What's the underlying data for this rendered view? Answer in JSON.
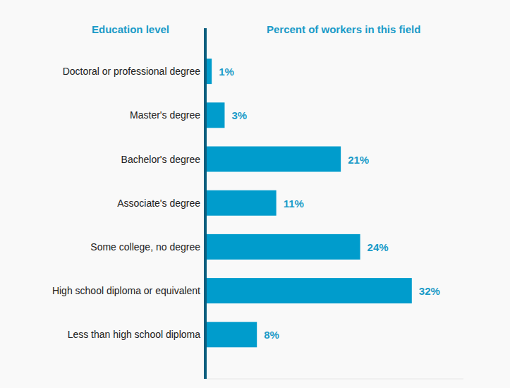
{
  "chart_data": {
    "type": "bar",
    "orientation": "horizontal",
    "xlabel": "Education level",
    "ylabel": "Percent of workers in this field",
    "categories": [
      "Doctoral or professional degree",
      "Master's degree",
      "Bachelor's degree",
      "Associate's degree",
      "Some college, no degree",
      "High school diploma or equivalent",
      "Less than high school diploma"
    ],
    "values": [
      1,
      3,
      21,
      11,
      24,
      32,
      8
    ],
    "value_labels": [
      "1%",
      "3%",
      "21%",
      "11%",
      "24%",
      "32%",
      "8%"
    ],
    "color": "#009ccc",
    "ylim": [
      0,
      40
    ],
    "data_labels": true,
    "tick_labels": "x",
    "grid": false
  }
}
